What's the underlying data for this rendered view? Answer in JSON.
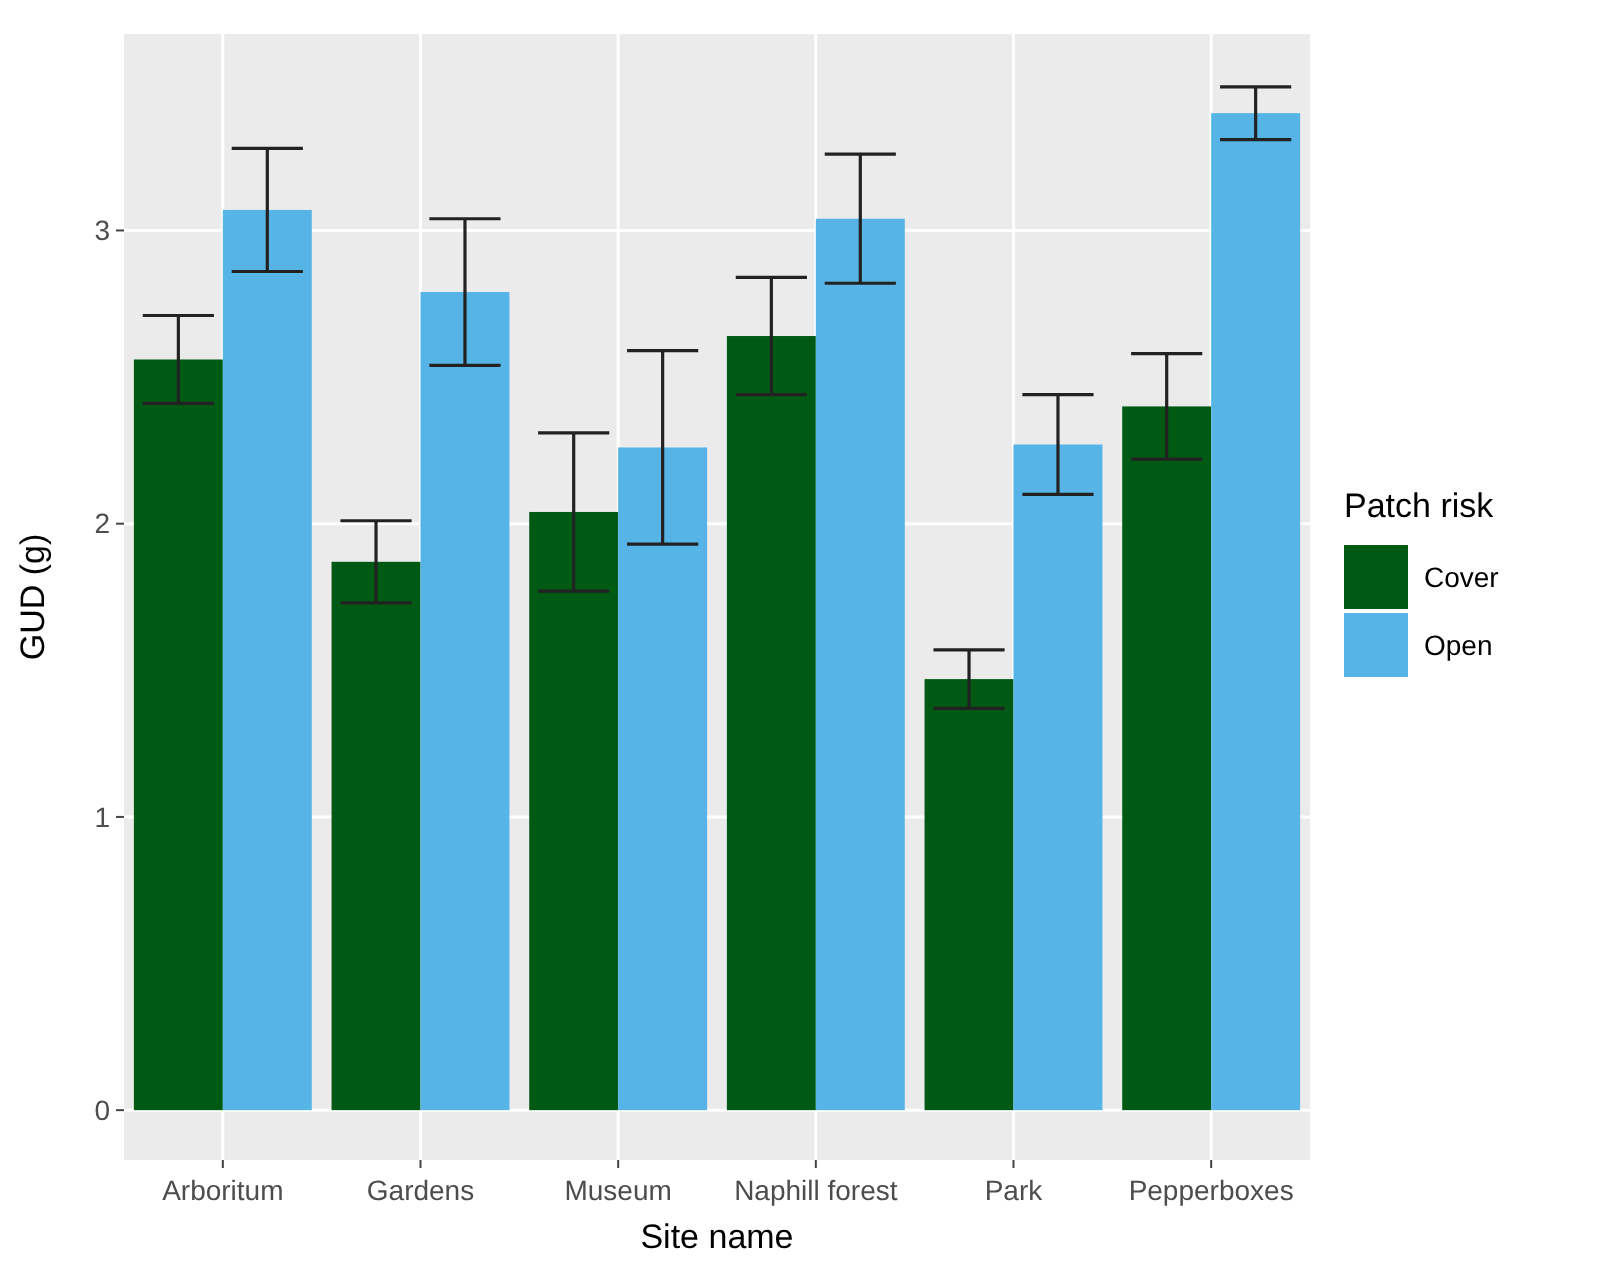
{
  "chart_data": {
    "type": "bar",
    "xlabel": "Site name",
    "ylabel": "GUD (g)",
    "legend_title": "Patch risk",
    "categories": [
      "Arboritum",
      "Gardens",
      "Museum",
      "Naphill forest",
      "Park",
      "Pepperboxes"
    ],
    "series": [
      {
        "name": "Cover",
        "color": "#005a14",
        "values": [
          2.56,
          1.87,
          2.04,
          2.64,
          1.47,
          2.4
        ],
        "errors": [
          0.15,
          0.14,
          0.27,
          0.2,
          0.1,
          0.18
        ]
      },
      {
        "name": "Open",
        "color": "#56b4e6",
        "values": [
          3.07,
          2.79,
          2.26,
          3.04,
          2.27,
          3.4
        ],
        "errors": [
          0.21,
          0.25,
          0.33,
          0.22,
          0.17,
          0.09
        ]
      }
    ],
    "ylim": [
      -0.17,
      3.67
    ],
    "yticks": [
      0,
      1,
      2,
      3
    ],
    "grid": true,
    "legend": "right"
  }
}
